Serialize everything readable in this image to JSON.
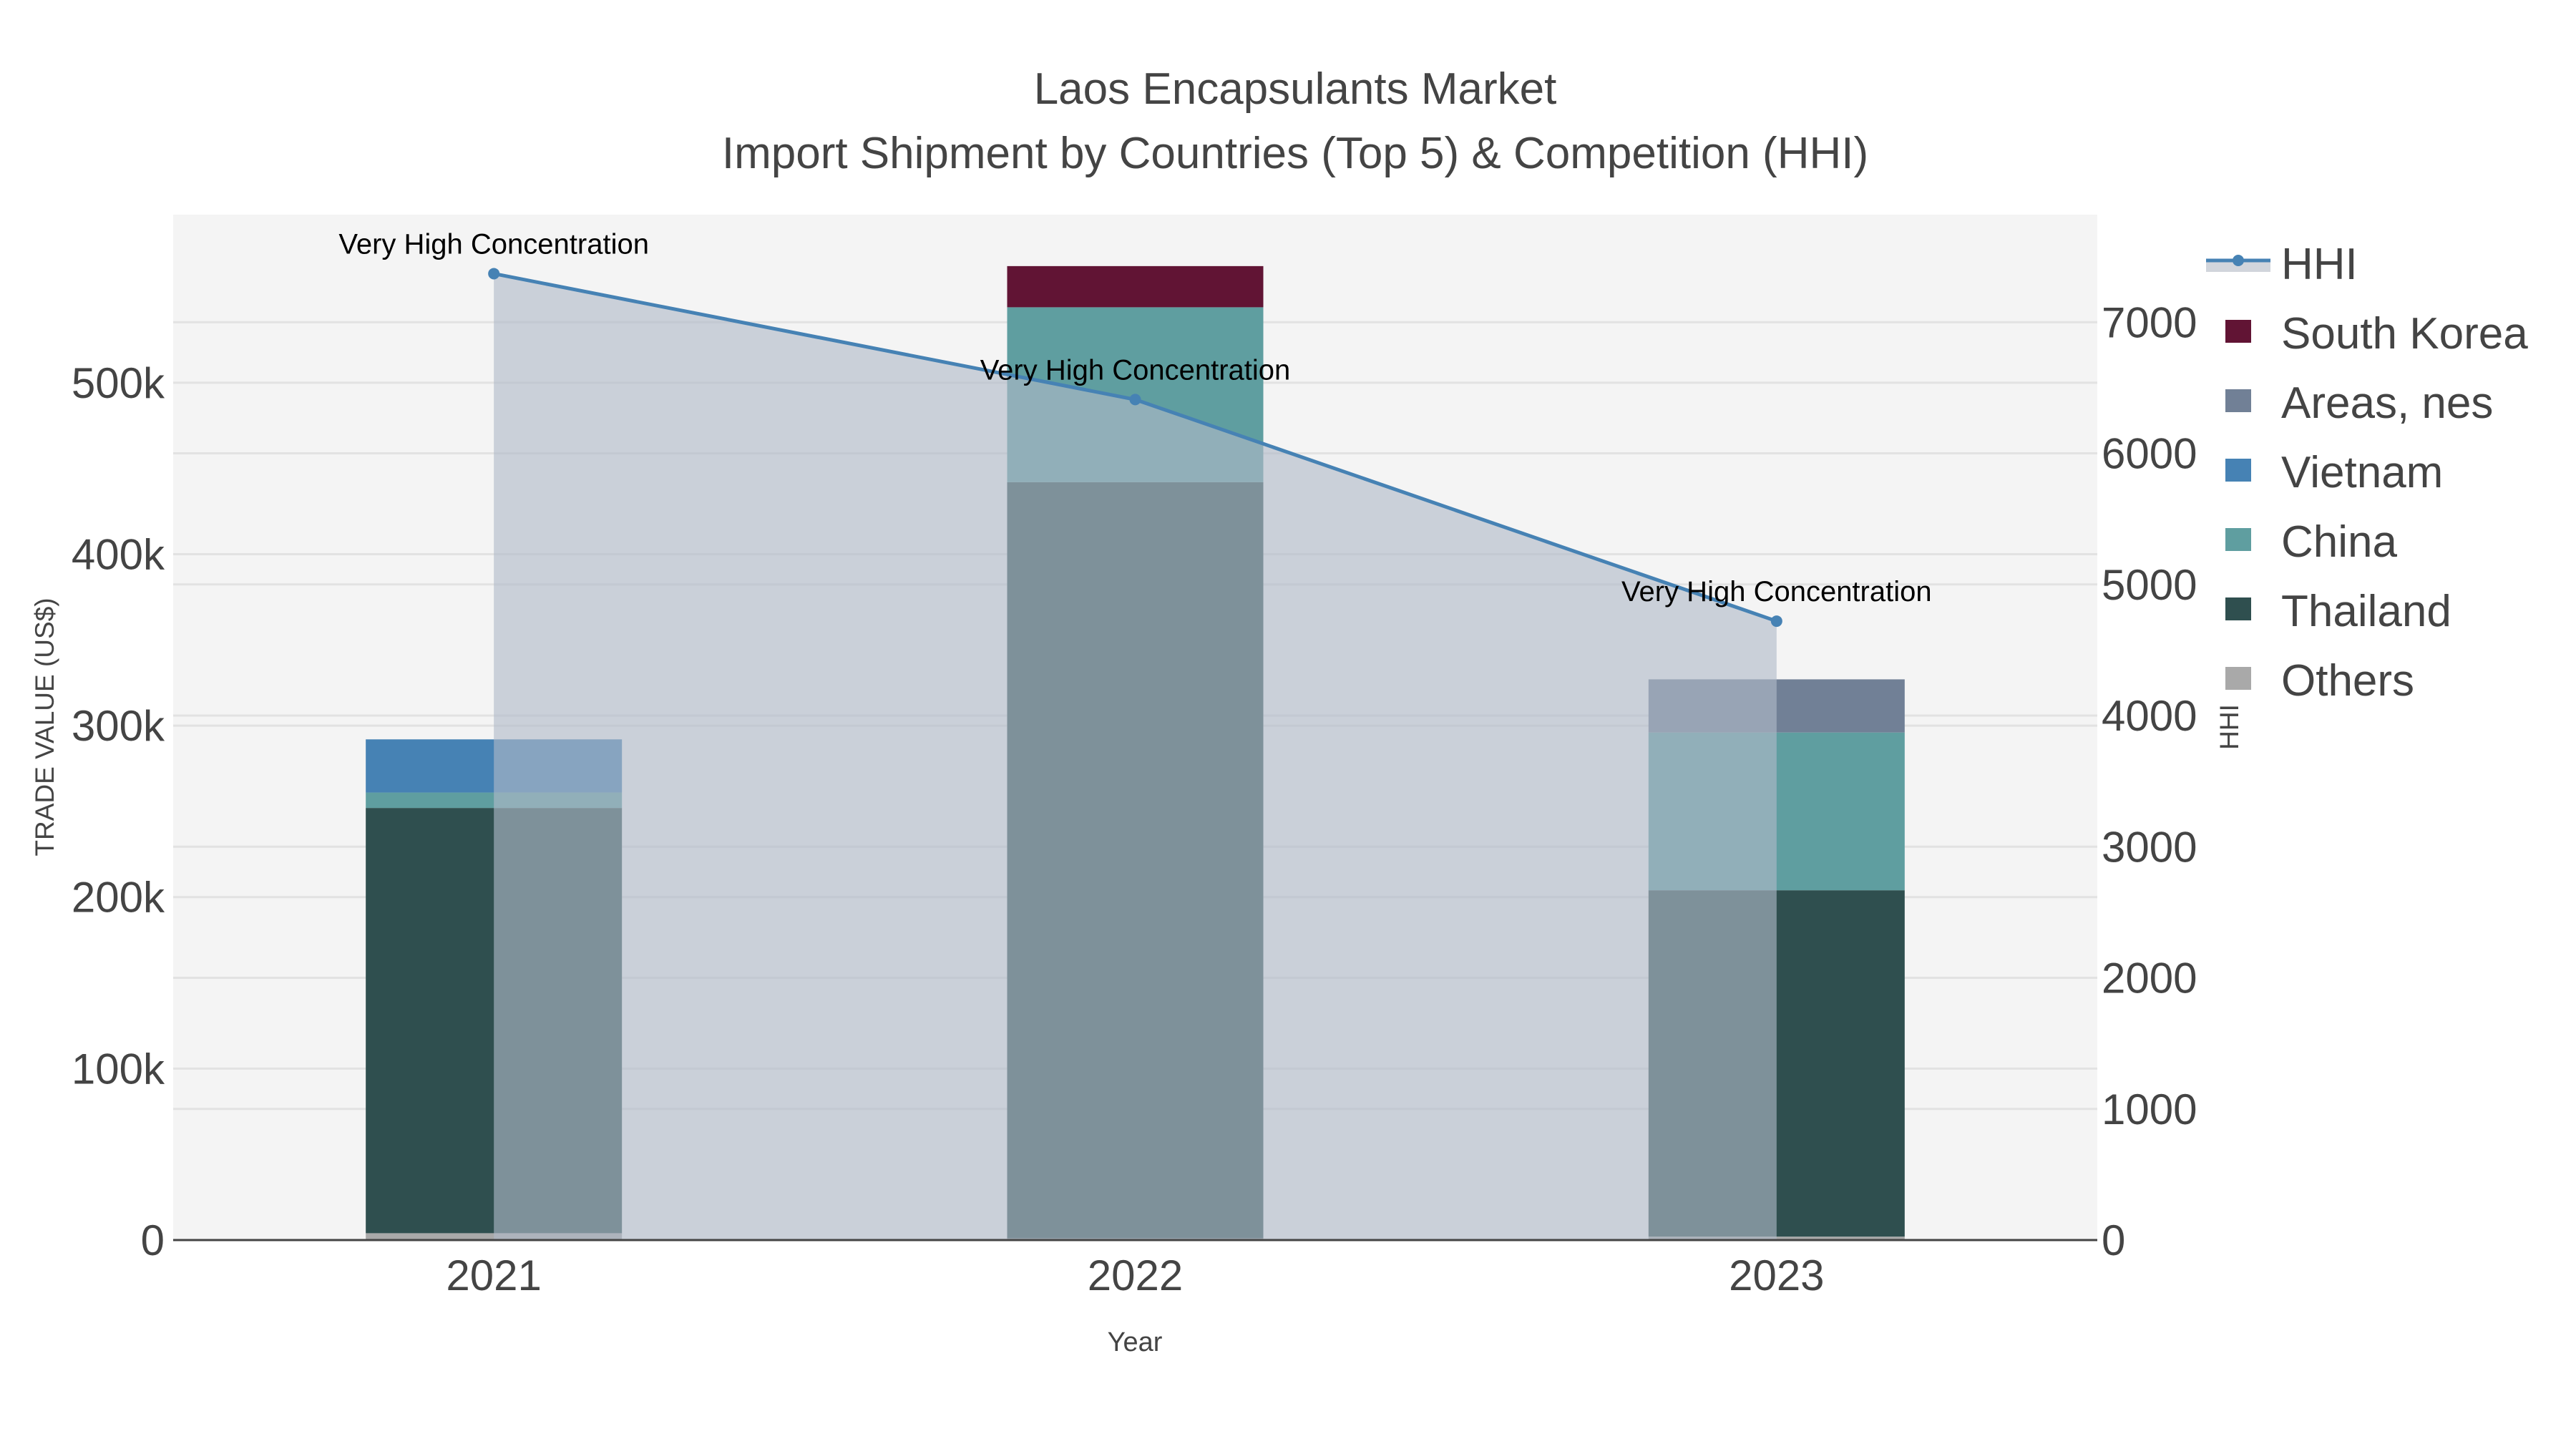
{
  "chart_data": {
    "type": "bar",
    "title": "Laos Encapsulants Market",
    "subtitle": "Import Shipment by Countries (Top 5) & Competition (HHI)",
    "xlabel": "Year",
    "ylabel": "TRADE VALUE (US$)",
    "y2label": "HHI",
    "categories": [
      "2021",
      "2022",
      "2023"
    ],
    "ylim": [
      0,
      598000
    ],
    "y2lim": [
      0,
      7820
    ],
    "yticks": [
      0,
      100000,
      200000,
      300000,
      400000,
      500000
    ],
    "ytick_labels": [
      "0",
      "100k",
      "200k",
      "300k",
      "400k",
      "500k"
    ],
    "y2ticks": [
      0,
      1000,
      2000,
      3000,
      4000,
      5000,
      6000,
      7000
    ],
    "y2tick_labels": [
      "0",
      "1000",
      "2000",
      "3000",
      "4000",
      "5000",
      "6000",
      "7000"
    ],
    "grid": true,
    "legend_position": "right",
    "series": [
      {
        "name": "Others",
        "color": "#a9a9a9",
        "values": [
          4000,
          1000,
          2000
        ]
      },
      {
        "name": "Thailand",
        "color": "#2f4f4f",
        "values": [
          248000,
          441000,
          202000
        ]
      },
      {
        "name": "China",
        "color": "#5f9ea0",
        "values": [
          9000,
          102000,
          92000
        ]
      },
      {
        "name": "Vietnam",
        "color": "#4682b4",
        "values": [
          31000,
          0,
          0
        ]
      },
      {
        "name": "Areas, nes",
        "color": "#718096",
        "values": [
          0,
          0,
          31000
        ]
      },
      {
        "name": "South Korea",
        "color": "#611434",
        "values": [
          0,
          24000,
          0
        ]
      }
    ],
    "hhi": {
      "name": "HHI",
      "color": "#4682b4",
      "values": [
        7370,
        6410,
        4720
      ],
      "annotations": [
        "Very High Concentration",
        "Very High Concentration",
        "Very High Concentration"
      ]
    },
    "legend_order": [
      "HHI",
      "South Korea",
      "Areas, nes",
      "Vietnam",
      "China",
      "Thailand",
      "Others"
    ]
  }
}
